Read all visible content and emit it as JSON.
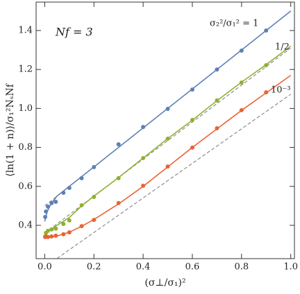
{
  "chart_data": {
    "type": "scatter",
    "annotation": "Nf = 3",
    "xlabel": "(σ⊥/σ₁)²",
    "ylabel": "⟨ln(1 + n)⟩/σ₁²NₛNf",
    "xlim": [
      -0.035,
      1.015
    ],
    "ylim": [
      0.229,
      1.546
    ],
    "xticks": [
      {
        "value": 0,
        "label": "0.0"
      },
      0.2,
      0.4,
      0.6,
      0.8,
      {
        "value": 1,
        "label": "1.0"
      }
    ],
    "yticks": [
      0.4,
      0.6,
      0.8,
      {
        "value": 1,
        "label": "1.0"
      },
      1.2,
      1.4
    ],
    "series": [
      {
        "name": "σ₂²/σ₁² = 1",
        "color": "#5e81b5",
        "x": [
          0.002,
          0.005,
          0.013,
          0.028,
          0.045,
          0.076,
          0.1,
          0.15,
          0.2,
          0.3,
          0.4,
          0.5,
          0.6,
          0.7,
          0.8,
          0.9
        ],
        "values": [
          0.443,
          0.471,
          0.496,
          0.514,
          0.521,
          0.567,
          0.592,
          0.642,
          0.699,
          0.816,
          0.905,
          0.998,
          1.097,
          1.2,
          1.297,
          1.4
        ],
        "curve_x": [
          0,
          0.01,
          0.025,
          0.05,
          0.1,
          0.15,
          0.2,
          0.3,
          0.4,
          0.5,
          0.6,
          0.7,
          0.8,
          0.9,
          1.0
        ],
        "curve_values": [
          0.42,
          0.47,
          0.51,
          0.55,
          0.6,
          0.65,
          0.7,
          0.8,
          0.9,
          1.0,
          1.1,
          1.2,
          1.3,
          1.4,
          1.5
        ],
        "asymptote_x": [
          0,
          1.0
        ],
        "asymptote_values": [
          0.5,
          1.5
        ]
      },
      {
        "name": "1/2",
        "color": "#8fb131",
        "x": [
          0.002,
          0.005,
          0.013,
          0.028,
          0.045,
          0.076,
          0.1,
          0.15,
          0.2,
          0.3,
          0.4,
          0.5,
          0.6,
          0.7,
          0.8,
          0.9
        ],
        "values": [
          0.343,
          0.361,
          0.372,
          0.379,
          0.383,
          0.407,
          0.425,
          0.503,
          0.546,
          0.642,
          0.745,
          0.845,
          0.941,
          1.041,
          1.133,
          1.222
        ],
        "curve_x": [
          0,
          0.01,
          0.025,
          0.05,
          0.1,
          0.15,
          0.2,
          0.3,
          0.4,
          0.5,
          0.6,
          0.7,
          0.8,
          0.9,
          1.0
        ],
        "curve_values": [
          0.34,
          0.36,
          0.38,
          0.4,
          0.44,
          0.5,
          0.55,
          0.645,
          0.745,
          0.845,
          0.94,
          1.04,
          1.135,
          1.225,
          1.32
        ],
        "asymptote_x": [
          0,
          1.0
        ],
        "asymptote_values": [
          0.36,
          1.31
        ]
      },
      {
        "name": "10⁻³",
        "color": "#eb6235",
        "x": [
          0.002,
          0.005,
          0.013,
          0.028,
          0.045,
          0.076,
          0.1,
          0.15,
          0.2,
          0.3,
          0.4,
          0.5,
          0.6,
          0.7,
          0.8,
          0.9
        ],
        "values": [
          0.34,
          0.343,
          0.34,
          0.343,
          0.347,
          0.354,
          0.364,
          0.396,
          0.428,
          0.514,
          0.603,
          0.702,
          0.799,
          0.898,
          0.991,
          1.083
        ],
        "curve_x": [
          0,
          0.01,
          0.025,
          0.05,
          0.1,
          0.15,
          0.2,
          0.3,
          0.4,
          0.5,
          0.6,
          0.7,
          0.8,
          0.9,
          1.0
        ],
        "curve_values": [
          0.335,
          0.335,
          0.34,
          0.345,
          0.365,
          0.395,
          0.43,
          0.51,
          0.6,
          0.7,
          0.8,
          0.895,
          0.99,
          1.08,
          1.17
        ],
        "asymptote_x": [
          0.05,
          1.0
        ],
        "asymptote_values": [
          0.23,
          1.073
        ]
      }
    ],
    "asymptote_color": "#8c8c8c"
  }
}
